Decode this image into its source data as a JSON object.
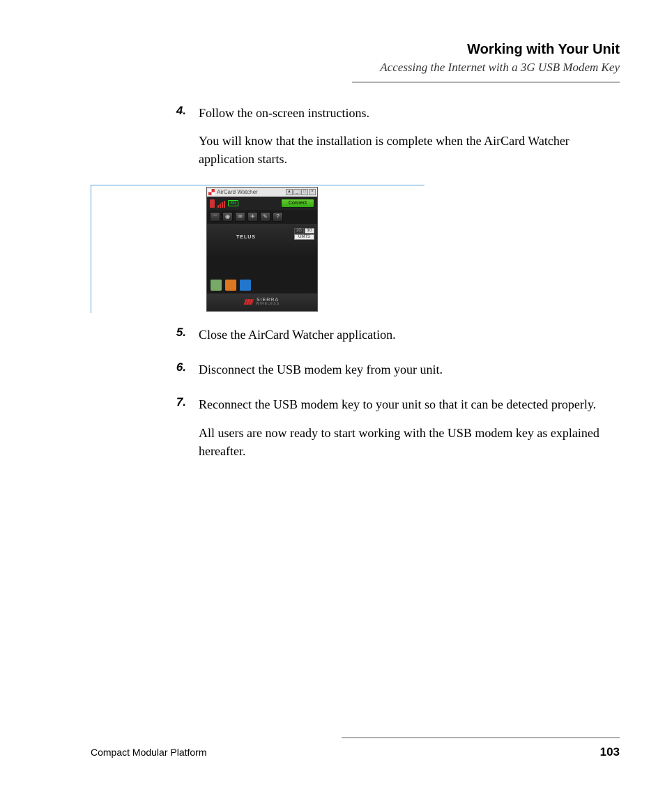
{
  "header": {
    "title": "Working with Your Unit",
    "subtitle": "Accessing the Internet with a 3G USB Modem Key"
  },
  "steps": {
    "s4": {
      "num": "4.",
      "p1": "Follow the on-screen instructions.",
      "p2": "You will know that the installation is complete when the AirCard Watcher application starts."
    },
    "s5": {
      "num": "5.",
      "p1": "Close the AirCard Watcher application."
    },
    "s6": {
      "num": "6.",
      "p1": "Disconnect the USB modem key from your unit."
    },
    "s7": {
      "num": "7.",
      "p1": "Reconnect the USB modem key to your unit so that it can be detected properly.",
      "p2": "All users are now ready to start working with the USB modem key as explained hereafter."
    }
  },
  "aircard": {
    "window_title": "AirCard Watcher",
    "mode_badge": "3G",
    "connect_label": "Connect",
    "carrier": "TELUS",
    "net_2g": "2G",
    "net_3g": "3G",
    "net_mode": "UMTS",
    "tool_help": "?",
    "brand": "SIERRA",
    "brand_sub": "WIRELESS",
    "colors": {
      "connect_bg": "#4caf2e",
      "signal": "#cc3333",
      "window_bg": "#3a3a3a",
      "titlebar_bg": "#e6e6e6"
    }
  },
  "footer": {
    "left": "Compact Modular Platform",
    "page": "103"
  },
  "style": {
    "rule_color": "#b0b0b0",
    "figure_rule_color": "#5aa0d8",
    "body_font": "Georgia, serif",
    "heading_font": "Arial, sans-serif"
  }
}
